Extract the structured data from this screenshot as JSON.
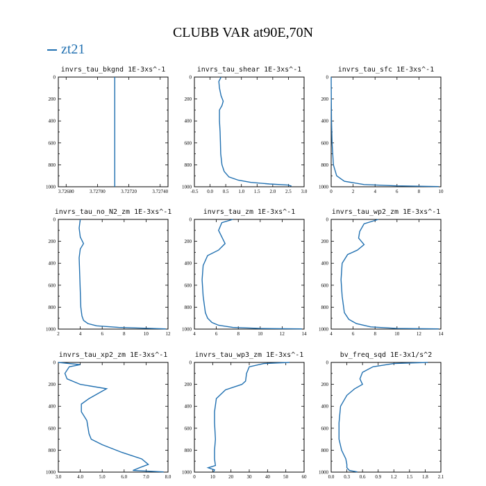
{
  "title": "CLUBB VAR at90E,70N",
  "legend": {
    "series_name": "zt21",
    "color": "#1f6fb0"
  },
  "chart_data": [
    {
      "type": "line",
      "title": "invrs_tau_bkgnd   1E-3xs^-1",
      "xlim": [
        3.72675,
        3.72745
      ],
      "ylim": [
        0,
        1000
      ],
      "xticks": [
        3.7268,
        3.727,
        3.7272,
        3.7274
      ],
      "xtick_labels": [
        "3.72680",
        "3.72700",
        "3.72720",
        "3.72740"
      ],
      "yticks": [
        0,
        200,
        400,
        600,
        800,
        1000
      ],
      "series": [
        {
          "name": "zt21",
          "x": [
            3.72711,
            3.72711
          ],
          "y": [
            0,
            1000
          ]
        }
      ]
    },
    {
      "type": "line",
      "title": "invrs_tau_shear   1E-3xs^-1",
      "xlim": [
        -0.5,
        3.0
      ],
      "ylim": [
        0,
        1000
      ],
      "xticks": [
        -0.5,
        0,
        0.5,
        1.0,
        1.5,
        2.0,
        2.5,
        3.0
      ],
      "xtick_labels": [
        "-0.5",
        "0.0",
        "0.5",
        "1.0",
        "1.5",
        "2.0",
        "2.5",
        "3.0"
      ],
      "yticks": [
        0,
        200,
        400,
        600,
        800,
        1000
      ],
      "series": [
        {
          "name": "zt21",
          "x": [
            0.35,
            0.28,
            0.3,
            0.35,
            0.42,
            0.38,
            0.3,
            0.3,
            0.32,
            0.33,
            0.34,
            0.38,
            0.45,
            0.6,
            0.9,
            1.3,
            1.9,
            2.5,
            2.6
          ],
          "y": [
            0,
            40,
            100,
            170,
            220,
            260,
            300,
            400,
            500,
            600,
            700,
            800,
            860,
            910,
            940,
            960,
            975,
            985,
            995
          ]
        }
      ]
    },
    {
      "type": "line",
      "title": "invrs_tau_sfc   1E-3xs^-1",
      "xlim": [
        0,
        10
      ],
      "ylim": [
        0,
        1000
      ],
      "xticks": [
        0,
        2,
        4,
        6,
        8,
        10
      ],
      "xtick_labels": [
        "0",
        "2",
        "4",
        "6",
        "8",
        "10"
      ],
      "yticks": [
        0,
        200,
        400,
        600,
        800,
        1000
      ],
      "series": [
        {
          "name": "zt21",
          "x": [
            0.0,
            0.01,
            0.03,
            0.08,
            0.2,
            0.5,
            1.2,
            3.0,
            6.0,
            9.8
          ],
          "y": [
            0,
            200,
            400,
            600,
            800,
            900,
            950,
            980,
            992,
            998
          ]
        }
      ]
    },
    {
      "type": "line",
      "title": "invrs_tau_no_N2_zm   1E-3xs^-1",
      "xlim": [
        2,
        12
      ],
      "ylim": [
        0,
        1000
      ],
      "xticks": [
        2,
        4,
        6,
        8,
        10,
        12
      ],
      "xtick_labels": [
        "2",
        "4",
        "6",
        "8",
        "10",
        "12"
      ],
      "yticks": [
        0,
        200,
        400,
        600,
        800,
        1000
      ],
      "series": [
        {
          "name": "zt21",
          "x": [
            4.0,
            3.9,
            4.0,
            4.3,
            4.0,
            3.9,
            3.95,
            4.0,
            4.05,
            4.15,
            4.3,
            4.7,
            5.5,
            7.5,
            11.8
          ],
          "y": [
            0,
            80,
            160,
            220,
            270,
            350,
            500,
            650,
            800,
            880,
            920,
            950,
            970,
            985,
            998
          ]
        }
      ]
    },
    {
      "type": "line",
      "title": "invrs_tau_zm   1E-3xs^-1",
      "xlim": [
        4,
        14
      ],
      "ylim": [
        0,
        1000
      ],
      "xticks": [
        4,
        6,
        8,
        10,
        12,
        14
      ],
      "xtick_labels": [
        "4",
        "6",
        "8",
        "10",
        "12",
        "14"
      ],
      "yticks": [
        0,
        200,
        400,
        600,
        800,
        1000
      ],
      "series": [
        {
          "name": "zt21",
          "x": [
            7.5,
            6.5,
            6.2,
            6.8,
            6.2,
            5.2,
            4.8,
            4.7,
            4.8,
            5.0,
            5.2,
            5.6,
            6.2,
            7.5,
            10.0,
            13.8
          ],
          "y": [
            0,
            30,
            100,
            220,
            280,
            330,
            420,
            550,
            700,
            850,
            900,
            940,
            965,
            985,
            994,
            998
          ]
        }
      ]
    },
    {
      "type": "line",
      "title": "invrs_tau_wp2_zm   1E-3xs^-1",
      "xlim": [
        4,
        14
      ],
      "ylim": [
        0,
        1000
      ],
      "xticks": [
        4,
        6,
        8,
        10,
        12,
        14
      ],
      "xtick_labels": [
        "4",
        "6",
        "8",
        "10",
        "12",
        "14"
      ],
      "yticks": [
        0,
        200,
        400,
        600,
        800,
        1000
      ],
      "series": [
        {
          "name": "zt21",
          "x": [
            8.3,
            7.0,
            6.6,
            6.5,
            7.0,
            6.4,
            5.5,
            5.0,
            4.9,
            5.0,
            5.2,
            5.6,
            6.3,
            7.6,
            10.0,
            13.8
          ],
          "y": [
            0,
            40,
            110,
            170,
            230,
            280,
            320,
            400,
            550,
            700,
            850,
            910,
            950,
            980,
            994,
            998
          ]
        }
      ]
    },
    {
      "type": "line",
      "title": "invrs_tau_xp2_zm   1E-3xs^-1",
      "xlim": [
        3.0,
        8.0
      ],
      "ylim": [
        0,
        1000
      ],
      "xticks": [
        3.0,
        4.0,
        5.0,
        6.0,
        7.0,
        8.0
      ],
      "xtick_labels": [
        "3.0",
        "4.0",
        "5.0",
        "6.0",
        "7.0",
        "8.0"
      ],
      "yticks": [
        0,
        200,
        400,
        600,
        800,
        1000
      ],
      "series": [
        {
          "name": "zt21",
          "x": [
            3.0,
            4.0,
            3.5,
            3.3,
            3.4,
            4.0,
            5.2,
            4.4,
            4.05,
            4.05,
            4.3,
            4.4,
            4.5,
            5.0,
            5.9,
            6.8,
            7.1,
            6.7,
            6.4,
            7.8
          ],
          "y": [
            0,
            20,
            40,
            100,
            150,
            200,
            240,
            330,
            380,
            450,
            530,
            650,
            700,
            750,
            820,
            880,
            930,
            960,
            985,
            998
          ]
        }
      ]
    },
    {
      "type": "line",
      "title": "invrs_tau_wp3_zm   1E-3xs^-1",
      "xlim": [
        0,
        60
      ],
      "ylim": [
        0,
        1000
      ],
      "xticks": [
        0,
        10,
        20,
        30,
        40,
        50,
        60
      ],
      "xtick_labels": [
        "0",
        "10",
        "20",
        "30",
        "40",
        "50",
        "60"
      ],
      "yticks": [
        0,
        200,
        400,
        600,
        800,
        1000
      ],
      "series": [
        {
          "name": "zt21",
          "x": [
            52.0,
            38.0,
            30.0,
            28.5,
            28.0,
            26.0,
            17.0,
            12.0,
            11.0,
            11.0,
            11.5,
            11.0,
            11.0,
            11.5,
            7.5,
            11.0,
            10.5
          ],
          "y": [
            0,
            10,
            40,
            100,
            170,
            200,
            250,
            330,
            450,
            550,
            700,
            800,
            880,
            940,
            960,
            980,
            998
          ]
        }
      ]
    },
    {
      "type": "line",
      "title": "bv_freq_sqd   1E-3x1/s^2",
      "xlim": [
        0.0,
        2.1
      ],
      "ylim": [
        0,
        1000
      ],
      "xticks": [
        0.0,
        0.3,
        0.6,
        0.9,
        1.2,
        1.5,
        1.8,
        2.1
      ],
      "xtick_labels": [
        "0.0",
        "0.3",
        "0.6",
        "0.9",
        "1.2",
        "1.5",
        "1.8",
        "2.1"
      ],
      "yticks": [
        0,
        200,
        400,
        600,
        800,
        1000
      ],
      "series": [
        {
          "name": "zt21",
          "x": [
            1.85,
            1.2,
            0.8,
            0.6,
            0.55,
            0.6,
            0.45,
            0.3,
            0.18,
            0.15,
            0.15,
            0.2,
            0.28,
            0.3,
            0.3,
            0.35,
            0.5
          ],
          "y": [
            0,
            10,
            40,
            90,
            150,
            200,
            240,
            300,
            400,
            550,
            700,
            800,
            880,
            930,
            960,
            985,
            998
          ]
        }
      ]
    }
  ]
}
